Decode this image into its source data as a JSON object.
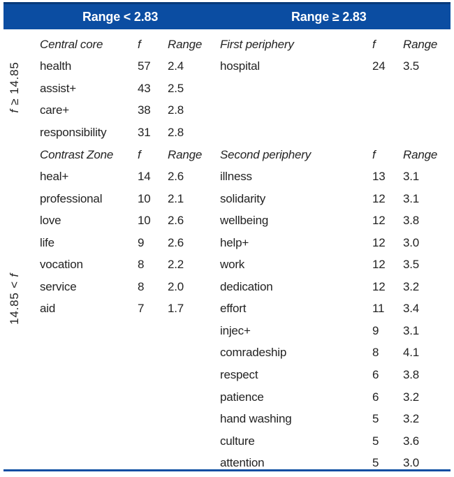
{
  "colors": {
    "header_blue": "#0b4da2",
    "header_blue_dark": "#083a7a",
    "header_text": "#ffffff",
    "body_text": "#232323"
  },
  "header": {
    "left": "Range < 2.83",
    "right": "Range ≥ 2.83"
  },
  "side_labels": {
    "top": {
      "italic_f": "f",
      "rest": " ≥ 14.85"
    },
    "bottom": {
      "rest": "14.85 < ",
      "italic_f": "f"
    }
  },
  "column_headers": {
    "f": "f",
    "range": "Range"
  },
  "sections": {
    "central_core": {
      "title": "Central core",
      "rows": [
        {
          "word": "health",
          "f": "57",
          "range": "2.4"
        },
        {
          "word": "assist+",
          "f": "43",
          "range": "2.5"
        },
        {
          "word": "care+",
          "f": "38",
          "range": "2.8"
        },
        {
          "word": "responsibility",
          "f": "31",
          "range": "2.8"
        }
      ]
    },
    "first_periphery": {
      "title": "First periphery",
      "rows": [
        {
          "word": "hospital",
          "f": "24",
          "range": "3.5"
        }
      ]
    },
    "contrast_zone": {
      "title": "Contrast Zone",
      "rows": [
        {
          "word": "heal+",
          "f": "14",
          "range": "2.6"
        },
        {
          "word": "professional",
          "f": "10",
          "range": "2.1"
        },
        {
          "word": "love",
          "f": "10",
          "range": "2.6"
        },
        {
          "word": "life",
          "f": "9",
          "range": "2.6"
        },
        {
          "word": "vocation",
          "f": "8",
          "range": "2.2"
        },
        {
          "word": "service",
          "f": "8",
          "range": "2.0"
        },
        {
          "word": "aid",
          "f": "7",
          "range": "1.7"
        }
      ]
    },
    "second_periphery": {
      "title": "Second periphery",
      "rows": [
        {
          "word": "illness",
          "f": "13",
          "range": "3.1"
        },
        {
          "word": "solidarity",
          "f": "12",
          "range": "3.1"
        },
        {
          "word": "wellbeing",
          "f": "12",
          "range": "3.8"
        },
        {
          "word": "help+",
          "f": "12",
          "range": "3.0"
        },
        {
          "word": "work",
          "f": "12",
          "range": "3.5"
        },
        {
          "word": "dedication",
          "f": "12",
          "range": "3.2"
        },
        {
          "word": "effort",
          "f": "11",
          "range": "3.4"
        },
        {
          "word": "injec+",
          "f": "9",
          "range": "3.1"
        },
        {
          "word": "comradeship",
          "f": "8",
          "range": "4.1"
        },
        {
          "word": "respect",
          "f": "6",
          "range": "3.8"
        },
        {
          "word": "patience",
          "f": "6",
          "range": "3.2"
        },
        {
          "word": "hand washing",
          "f": "5",
          "range": "3.2"
        },
        {
          "word": "culture",
          "f": "5",
          "range": "3.6"
        },
        {
          "word": "attention",
          "f": "5",
          "range": "3.0"
        }
      ]
    }
  }
}
